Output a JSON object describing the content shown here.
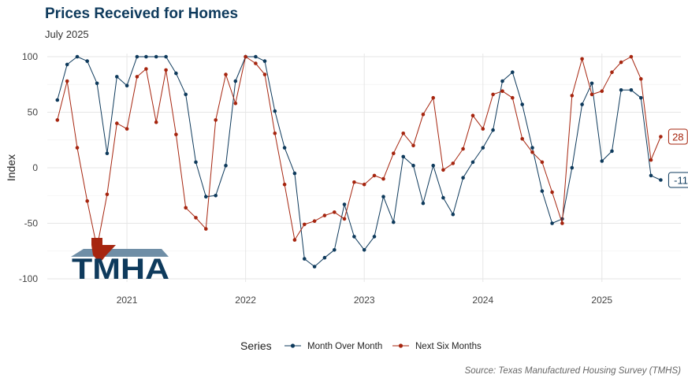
{
  "chart_data": {
    "type": "line",
    "title": "Prices Received for Homes",
    "subtitle": "July 2025",
    "xlabel": "",
    "ylabel": "Index",
    "ylim": [
      -100,
      100
    ],
    "y_ticks": [
      -100,
      -50,
      0,
      50,
      100
    ],
    "x_range": [
      "2020-05-01",
      "2025-09-01"
    ],
    "x_ticks": [
      {
        "label": "2021",
        "date": "2021-01-01"
      },
      {
        "label": "2022",
        "date": "2022-01-01"
      },
      {
        "label": "2023",
        "date": "2023-01-01"
      },
      {
        "label": "2024",
        "date": "2024-01-01"
      },
      {
        "label": "2025",
        "date": "2025-01-01"
      }
    ],
    "grid": true,
    "legend": {
      "title": "Series",
      "position": "bottom"
    },
    "source": "Source: Texas Manufactured Housing Survey (TMHS)",
    "logo_text": "TMHA",
    "dates": [
      "2020-06",
      "2020-07",
      "2020-08",
      "2020-09",
      "2020-10",
      "2020-11",
      "2020-12",
      "2021-01",
      "2021-02",
      "2021-03",
      "2021-04",
      "2021-05",
      "2021-06",
      "2021-07",
      "2021-08",
      "2021-09",
      "2021-10",
      "2021-11",
      "2021-12",
      "2022-01",
      "2022-02",
      "2022-03",
      "2022-04",
      "2022-05",
      "2022-06",
      "2022-07",
      "2022-08",
      "2022-09",
      "2022-10",
      "2022-11",
      "2022-12",
      "2023-01",
      "2023-02",
      "2023-03",
      "2023-04",
      "2023-05",
      "2023-06",
      "2023-07",
      "2023-08",
      "2023-09",
      "2023-10",
      "2023-11",
      "2023-12",
      "2024-01",
      "2024-02",
      "2024-03",
      "2024-04",
      "2024-05",
      "2024-06",
      "2024-07",
      "2024-08",
      "2024-09",
      "2024-10",
      "2024-11",
      "2024-12",
      "2025-01",
      "2025-02",
      "2025-03",
      "2025-04",
      "2025-05",
      "2025-06",
      "2025-07"
    ],
    "series": [
      {
        "name": "Month Over Month",
        "color": "#0e3a5c",
        "end_label": "-11",
        "values": [
          61,
          93,
          100,
          96,
          76,
          13,
          82,
          74,
          100,
          100,
          100,
          100,
          85,
          66,
          5,
          -26,
          -25,
          2,
          78,
          100,
          100,
          96,
          51,
          18,
          -5,
          -82,
          -89,
          -81,
          -74,
          -33,
          -62,
          -74,
          -62,
          -26,
          -49,
          10,
          2,
          -32,
          2,
          -27,
          -42,
          -9,
          5,
          18,
          34,
          78,
          86,
          57,
          18,
          -21,
          -50,
          -46,
          0,
          57,
          76,
          6,
          15,
          70,
          70,
          63,
          -7,
          -11
        ]
      },
      {
        "name": "Next Six Months",
        "color": "#a6250f",
        "end_label": "28",
        "values": [
          43,
          78,
          18,
          -30,
          -72,
          -24,
          40,
          35,
          82,
          89,
          41,
          88,
          30,
          -36,
          -45,
          -55,
          43,
          84,
          58,
          100,
          94,
          84,
          31,
          -15,
          -65,
          -51,
          -48,
          -43,
          -40,
          -46,
          -13,
          -15,
          -7,
          -10,
          13,
          31,
          20,
          48,
          63,
          -2,
          4,
          17,
          47,
          35,
          66,
          69,
          63,
          26,
          14,
          5,
          -22,
          -50,
          65,
          98,
          66,
          69,
          86,
          95,
          100,
          80,
          7,
          28
        ]
      }
    ]
  }
}
